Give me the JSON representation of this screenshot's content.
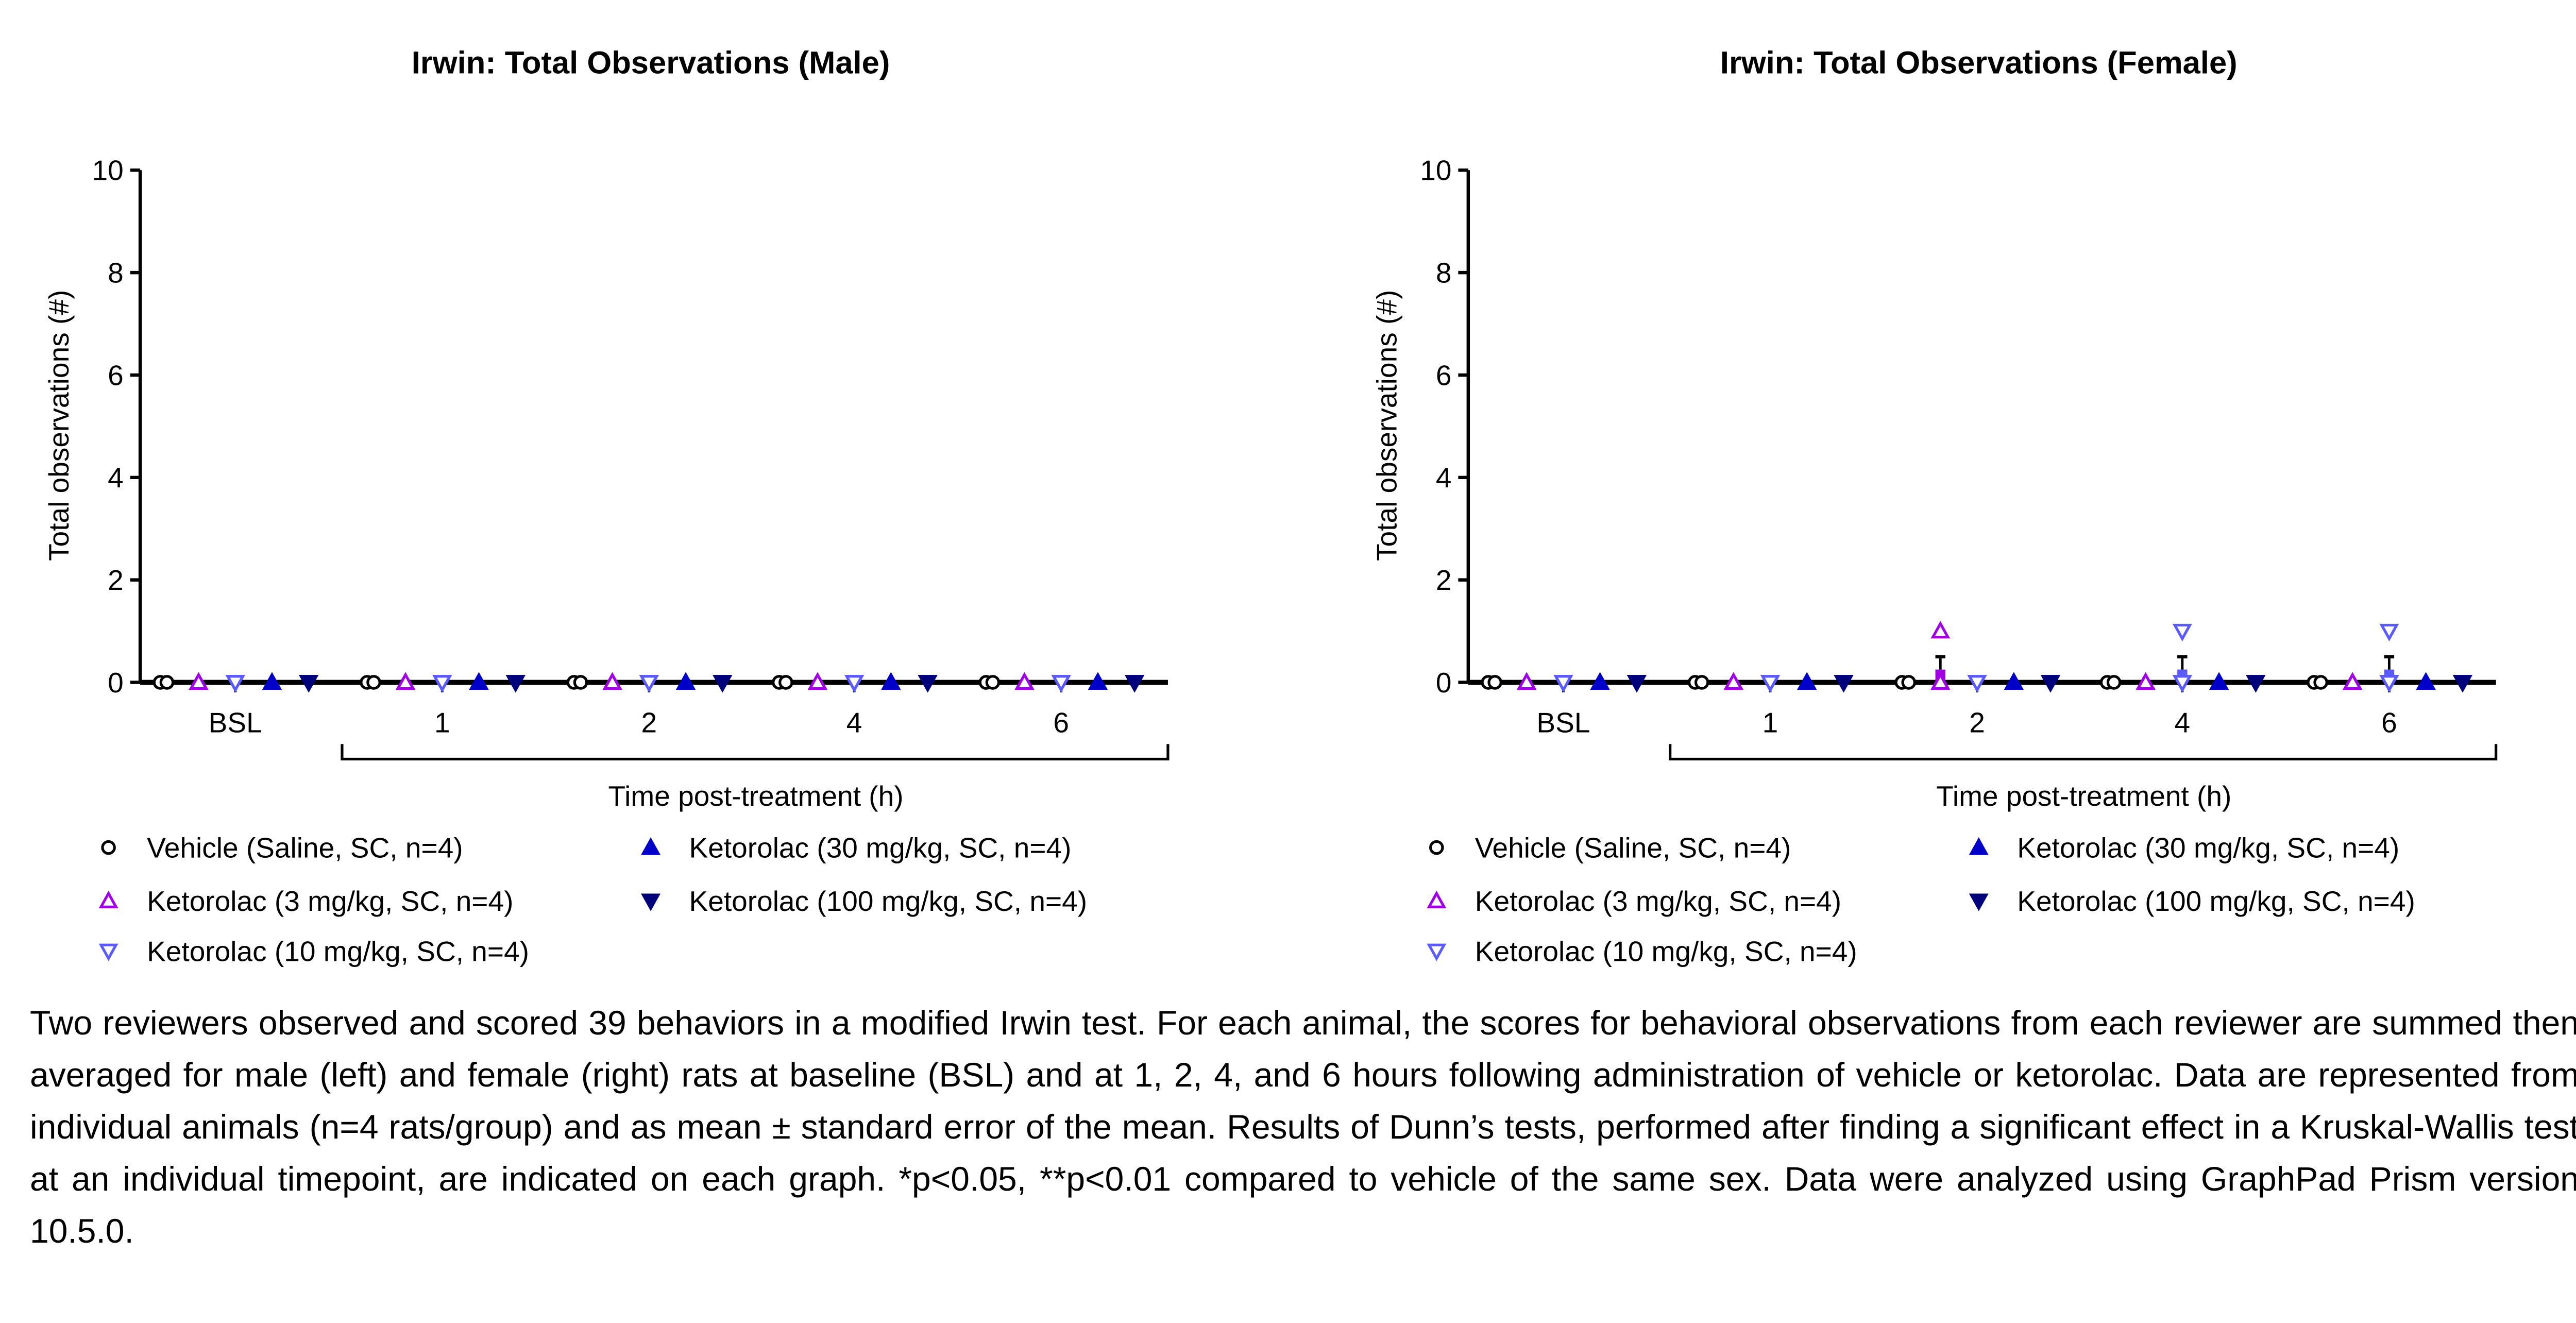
{
  "colors": {
    "vehicle": "#000000",
    "keto3": "#A000E6",
    "keto10": "#5A5AFF",
    "keto30": "#0000C8",
    "keto100": "#00007A"
  },
  "legend": [
    {
      "key": "vehicle",
      "label": "Vehicle (Saline, SC, n=4)",
      "marker": "circle"
    },
    {
      "key": "keto3",
      "label": "Ketorolac (3 mg/kg, SC, n=4)",
      "marker": "triangle-up"
    },
    {
      "key": "keto10",
      "label": "Ketorolac (10 mg/kg, SC, n=4)",
      "marker": "triangle-down"
    },
    {
      "key": "keto30",
      "label": "Ketorolac (30 mg/kg, SC, n=4)",
      "marker": "triangle-up-filled"
    },
    {
      "key": "keto100",
      "label": "Ketorolac (100 mg/kg, SC, n=4)",
      "marker": "triangle-down-filled"
    }
  ],
  "chart_data": [
    {
      "type": "scatter",
      "title": "Irwin: Total Observations (Male)",
      "ylabel": "Total observations (#)",
      "xlabel": "Time post-treatment (h)",
      "categories": [
        "BSL",
        "1",
        "2",
        "4",
        "6"
      ],
      "ylim": [
        0,
        10
      ],
      "yticks": [
        0,
        2,
        4,
        6,
        8,
        10
      ],
      "error": "mean ± SEM",
      "series": [
        {
          "name": "Vehicle (Saline, SC, n=4)",
          "key": "vehicle",
          "values": [
            [
              0,
              0,
              0,
              0
            ],
            [
              0,
              0,
              0,
              0
            ],
            [
              0,
              0,
              0,
              0
            ],
            [
              0,
              0,
              0,
              0
            ],
            [
              0,
              0,
              0,
              0
            ]
          ]
        },
        {
          "name": "Ketorolac (3 mg/kg, SC, n=4)",
          "key": "keto3",
          "values": [
            [
              0,
              0,
              0,
              0
            ],
            [
              0,
              0,
              0,
              0
            ],
            [
              0,
              0,
              0,
              0
            ],
            [
              0,
              0,
              0,
              0
            ],
            [
              0,
              0,
              0,
              0
            ]
          ]
        },
        {
          "name": "Ketorolac (10 mg/kg, SC, n=4)",
          "key": "keto10",
          "values": [
            [
              0,
              0,
              0,
              0
            ],
            [
              0,
              0,
              0,
              0
            ],
            [
              0,
              0,
              0,
              0
            ],
            [
              0,
              0,
              0,
              0
            ],
            [
              0,
              0,
              0,
              0
            ]
          ]
        },
        {
          "name": "Ketorolac (30 mg/kg, SC, n=4)",
          "key": "keto30",
          "values": [
            [
              0,
              0,
              0,
              0
            ],
            [
              0,
              0,
              0,
              0
            ],
            [
              0,
              0,
              0,
              0
            ],
            [
              0,
              0,
              0,
              0
            ],
            [
              0,
              0,
              0,
              0
            ]
          ]
        },
        {
          "name": "Ketorolac (100 mg/kg, SC, n=4)",
          "key": "keto100",
          "values": [
            [
              0,
              0,
              0,
              0
            ],
            [
              0,
              0,
              0,
              0
            ],
            [
              0,
              0,
              0,
              0
            ],
            [
              0,
              0,
              0,
              0
            ],
            [
              0,
              0,
              0,
              0
            ]
          ]
        }
      ]
    },
    {
      "type": "scatter",
      "title": "Irwin: Total Observations (Female)",
      "ylabel": "Total observations (#)",
      "xlabel": "Time post-treatment (h)",
      "categories": [
        "BSL",
        "1",
        "2",
        "4",
        "6"
      ],
      "ylim": [
        0,
        10
      ],
      "yticks": [
        0,
        2,
        4,
        6,
        8,
        10
      ],
      "error": "mean ± SEM",
      "series": [
        {
          "name": "Vehicle (Saline, SC, n=4)",
          "key": "vehicle",
          "values": [
            [
              0,
              0,
              0,
              0
            ],
            [
              0,
              0,
              0,
              0
            ],
            [
              0,
              0,
              0,
              0
            ],
            [
              0,
              0,
              0,
              0
            ],
            [
              0,
              0,
              0,
              0
            ]
          ]
        },
        {
          "name": "Ketorolac (3 mg/kg, SC, n=4)",
          "key": "keto3",
          "values": [
            [
              0,
              0,
              0,
              0
            ],
            [
              0,
              0,
              0,
              0
            ],
            [
              1,
              0,
              0,
              0
            ],
            [
              0,
              0,
              0,
              0
            ],
            [
              0,
              0,
              0,
              0
            ]
          ]
        },
        {
          "name": "Ketorolac (10 mg/kg, SC, n=4)",
          "key": "keto10",
          "values": [
            [
              0,
              0,
              0,
              0
            ],
            [
              0,
              0,
              0,
              0
            ],
            [
              0,
              0,
              0,
              0
            ],
            [
              1,
              0,
              0,
              0
            ],
            [
              1,
              0,
              0,
              0
            ]
          ]
        },
        {
          "name": "Ketorolac (30 mg/kg, SC, n=4)",
          "key": "keto30",
          "values": [
            [
              0,
              0,
              0,
              0
            ],
            [
              0,
              0,
              0,
              0
            ],
            [
              0,
              0,
              0,
              0
            ],
            [
              0,
              0,
              0,
              0
            ],
            [
              0,
              0,
              0,
              0
            ]
          ]
        },
        {
          "name": "Ketorolac (100 mg/kg, SC, n=4)",
          "key": "keto100",
          "values": [
            [
              0,
              0,
              0,
              0
            ],
            [
              0,
              0,
              0,
              0
            ],
            [
              0,
              0,
              0,
              0
            ],
            [
              0,
              0,
              0,
              0
            ],
            [
              0,
              0,
              0,
              0
            ]
          ]
        }
      ]
    }
  ],
  "caption": "Two reviewers observed and scored 39 behaviors in a modified Irwin test. For each animal, the scores for behavioral observations from each reviewer are summed then averaged for male (left) and female (right) rats at baseline (BSL) and at 1, 2, 4, and 6 hours following administration of vehicle or ketorolac. Data are represented from individual animals (n=4 rats/group) and as mean ± standard error of the mean. Results of Dunn’s tests, performed after finding a significant effect in a Kruskal-Wallis test at an individual timepoint, are indicated on each graph. *p<0.05, **p<0.01 compared to vehicle of the same sex. Data were analyzed using GraphPad Prism version 10.5.0."
}
